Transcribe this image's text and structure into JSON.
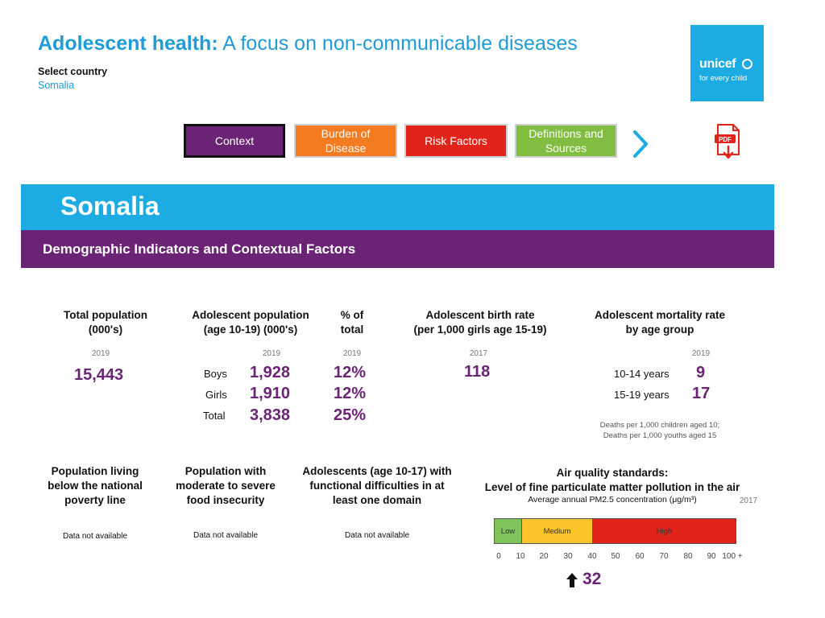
{
  "header": {
    "title_bold": "Adolescent health:",
    "title_rest": " A focus on non-communicable diseases",
    "select_label": "Select country",
    "selected_country": "Somalia"
  },
  "logo": {
    "word": "unicef",
    "tagline": "for every child"
  },
  "nav": {
    "context": "Context",
    "burden_line1": "Burden of",
    "burden_line2": "Disease",
    "risk": "Risk Factors",
    "defs_line1": "Definitions and",
    "defs_line2": "Sources",
    "pdf_label": "PDF"
  },
  "banner": {
    "country": "Somalia",
    "section": "Demographic Indicators and Contextual Factors"
  },
  "total_population": {
    "header_line1": "Total population",
    "header_line2": "(000's)",
    "year": "2019",
    "value": "15,443"
  },
  "adolescent_population": {
    "header_line1": "Adolescent population",
    "header_line2": "(age 10-19) (000's)",
    "year": "2019",
    "pct_header_line1": "% of",
    "pct_header_line2": "total",
    "pct_year": "2019",
    "rows": [
      {
        "label": "Boys",
        "value": "1,928",
        "pct": "12%"
      },
      {
        "label": "Girls",
        "value": "1,910",
        "pct": "12%"
      },
      {
        "label": "Total",
        "value": "3,838",
        "pct": "25%"
      }
    ]
  },
  "birth_rate": {
    "header_line1": "Adolescent birth rate",
    "header_line2": "(per 1,000 girls age 15-19)",
    "year": "2017",
    "value": "118"
  },
  "mortality": {
    "header_line1": "Adolescent mortality rate",
    "header_line2": "by age group",
    "year": "2019",
    "rows": [
      {
        "label": "10-14 years",
        "value": "9"
      },
      {
        "label": "15-19 years",
        "value": "17"
      }
    ],
    "note_line1": "Deaths per 1,000 children aged 10;",
    "note_line2": "Deaths per 1,000 youths aged 15"
  },
  "poverty": {
    "line1": "Population living",
    "line2": "below the national",
    "line3": "poverty line",
    "status": "Data not available"
  },
  "food": {
    "line1": "Population with",
    "line2": "moderate to severe",
    "line3": "food insecurity",
    "status": "Data not available"
  },
  "difficulties": {
    "line1": "Adolescents (age 10-17) with",
    "line2": "functional difficulties in at",
    "line3": "least one domain",
    "status": "Data not available"
  },
  "air_quality": {
    "title_line1": "Air quality standards:",
    "title_line2": "Level of fine particulate matter pollution in the air",
    "subtitle": "Average annual PM2.5 concentration (μg/m³)",
    "year": "2017",
    "segments": {
      "low": "Low",
      "medium": "Medium",
      "high": "High"
    },
    "ticks": [
      "0",
      "10",
      "20",
      "30",
      "40",
      "50",
      "60",
      "70",
      "80",
      "90",
      "100 +"
    ],
    "value": "32"
  },
  "colors": {
    "blue": "#1cabe2",
    "purple": "#6b2475",
    "orange": "#f47b20",
    "red": "#e2231a",
    "green": "#80bd41"
  }
}
